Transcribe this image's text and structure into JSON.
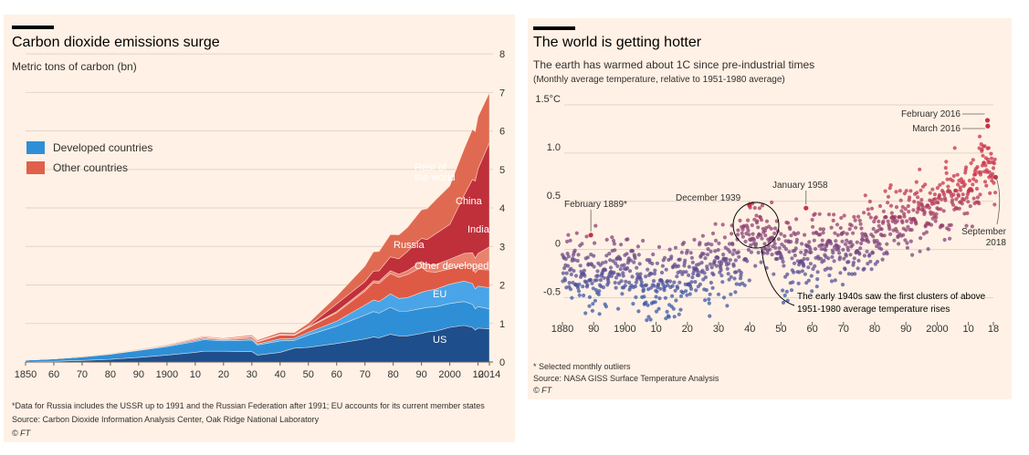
{
  "chart_data": [
    {
      "type": "area",
      "title": "Carbon dioxide emissions surge",
      "subtitle": "Metric tons of carbon (bn)",
      "xlim": [
        1850,
        2014
      ],
      "ylim": [
        0,
        8.5
      ],
      "x_ticks": [
        "1850",
        "60",
        "70",
        "80",
        "90",
        "1900",
        "10",
        "20",
        "30",
        "40",
        "50",
        "60",
        "70",
        "80",
        "90",
        "2000",
        "10",
        "2014"
      ],
      "y_ticks": [
        "0",
        "1",
        "2",
        "3",
        "4",
        "5",
        "6",
        "7",
        "8"
      ],
      "grid": true,
      "legend_position": "left",
      "legend": [
        {
          "label": "Developed countries",
          "color": "#2e8fd8"
        },
        {
          "label": "Other countries",
          "color": "#e0604c"
        }
      ],
      "x": [
        1850,
        1860,
        1870,
        1880,
        1890,
        1900,
        1910,
        1913,
        1920,
        1930,
        1932,
        1940,
        1945,
        1950,
        1960,
        1970,
        1973,
        1975,
        1979,
        1982,
        1985,
        1990,
        1992,
        1995,
        2000,
        2005,
        2008,
        2009,
        2010,
        2014
      ],
      "series": [
        {
          "name": "US",
          "group": "developed",
          "color": "#1f4e8c",
          "values": [
            0.01,
            0.02,
            0.04,
            0.07,
            0.12,
            0.18,
            0.25,
            0.28,
            0.28,
            0.27,
            0.18,
            0.25,
            0.36,
            0.38,
            0.48,
            0.6,
            0.65,
            0.63,
            0.72,
            0.68,
            0.68,
            0.74,
            0.78,
            0.8,
            0.9,
            0.95,
            0.9,
            0.83,
            0.88,
            0.86
          ]
        },
        {
          "name": "EU",
          "group": "developed",
          "color": "#2f8fd6",
          "values": [
            0.04,
            0.06,
            0.09,
            0.13,
            0.18,
            0.22,
            0.28,
            0.3,
            0.27,
            0.3,
            0.26,
            0.3,
            0.2,
            0.32,
            0.45,
            0.62,
            0.66,
            0.64,
            0.7,
            0.64,
            0.64,
            0.65,
            0.64,
            0.63,
            0.62,
            0.62,
            0.6,
            0.55,
            0.56,
            0.52
          ]
        },
        {
          "name": "Other developed",
          "group": "developed",
          "color": "#49a5e8",
          "values": [
            0.0,
            0.0,
            0.0,
            0.01,
            0.01,
            0.02,
            0.03,
            0.03,
            0.03,
            0.04,
            0.03,
            0.05,
            0.05,
            0.07,
            0.13,
            0.26,
            0.3,
            0.3,
            0.35,
            0.33,
            0.35,
            0.42,
            0.43,
            0.46,
            0.5,
            0.53,
            0.54,
            0.52,
            0.53,
            0.55
          ]
        },
        {
          "name": "Russia",
          "group": "other",
          "color": "#de5a45",
          "values": [
            0.0,
            0.0,
            0.0,
            0.0,
            0.01,
            0.02,
            0.03,
            0.03,
            0.01,
            0.04,
            0.05,
            0.1,
            0.08,
            0.12,
            0.22,
            0.36,
            0.45,
            0.47,
            0.53,
            0.55,
            0.6,
            0.65,
            0.5,
            0.44,
            0.4,
            0.42,
            0.45,
            0.42,
            0.43,
            0.46
          ]
        },
        {
          "name": "India",
          "group": "other",
          "color": "#e8826e",
          "values": [
            0.0,
            0.0,
            0.0,
            0.0,
            0.0,
            0.0,
            0.01,
            0.01,
            0.01,
            0.01,
            0.01,
            0.01,
            0.01,
            0.02,
            0.03,
            0.05,
            0.05,
            0.06,
            0.07,
            0.08,
            0.1,
            0.15,
            0.17,
            0.2,
            0.25,
            0.3,
            0.35,
            0.38,
            0.42,
            0.6
          ]
        },
        {
          "name": "China",
          "group": "other",
          "color": "#c0303a",
          "values": [
            0.0,
            0.0,
            0.0,
            0.0,
            0.0,
            0.0,
            0.0,
            0.0,
            0.0,
            0.01,
            0.01,
            0.01,
            0.01,
            0.02,
            0.2,
            0.2,
            0.25,
            0.27,
            0.36,
            0.4,
            0.5,
            0.6,
            0.66,
            0.8,
            0.9,
            1.5,
            1.9,
            2.0,
            2.2,
            2.7
          ]
        },
        {
          "name": "Rest of the world",
          "group": "other",
          "color": "#e06a51",
          "values": [
            0.0,
            0.0,
            0.01,
            0.01,
            0.01,
            0.01,
            0.02,
            0.02,
            0.02,
            0.03,
            0.03,
            0.05,
            0.05,
            0.08,
            0.2,
            0.4,
            0.5,
            0.5,
            0.58,
            0.62,
            0.62,
            0.74,
            0.8,
            0.88,
            1.0,
            1.2,
            1.3,
            1.28,
            1.35,
            1.3
          ]
        }
      ],
      "labels": {
        "us": "US",
        "eu": "EU",
        "other_developed": "Other developed",
        "russia": "Russia",
        "india": "India",
        "china": "China",
        "rest_line1": "Rest of",
        "rest_line2": "the world"
      },
      "footnote": "*Data for Russia includes the USSR up to 1991 and the Russian Federation after 1991; EU accounts for its current member states",
      "source": "Source: Carbon Dioxide Information Analysis Center, Oak Ridge National Laboratory",
      "credit": "© FT"
    },
    {
      "type": "scatter",
      "title": "The world is getting hotter",
      "subtitle": "The earth has warmed about 1C since pre-industrial times",
      "subtitle2": "(Monthly average temperature, relative to 1951-1980 average)",
      "xlim": [
        1880,
        2018
      ],
      "ylim": [
        -0.75,
        1.5
      ],
      "x_ticks": [
        "1880",
        "90",
        "1900",
        "10",
        "20",
        "30",
        "40",
        "50",
        "60",
        "70",
        "80",
        "90",
        "2000",
        "10",
        "18"
      ],
      "y_ticks": [
        "-0.5",
        "0",
        "0.5",
        "1.0",
        "1.5°C"
      ],
      "grid": true,
      "color_scale": {
        "cold": "#3a58a8",
        "warm": "#c8324a"
      },
      "trend_anchors": {
        "year": [
          1880,
          1890,
          1900,
          1910,
          1920,
          1930,
          1937,
          1940,
          1944,
          1950,
          1960,
          1970,
          1980,
          1990,
          2000,
          2010,
          2015,
          2018
        ],
        "anomaly": [
          -0.18,
          -0.28,
          -0.2,
          -0.4,
          -0.25,
          -0.15,
          -0.05,
          0.05,
          0.2,
          -0.1,
          0.0,
          -0.02,
          0.15,
          0.35,
          0.45,
          0.65,
          0.85,
          0.85
        ]
      },
      "outliers": [
        {
          "label": "February 1889*",
          "year": 1889.1,
          "value": 0.15
        },
        {
          "label": "December 1939",
          "year": 1939.9,
          "value": 0.46
        },
        {
          "label": "January 1958",
          "year": 1958.0,
          "value": 0.43
        },
        {
          "label": "February 2016",
          "year": 2016.1,
          "value": 1.34
        },
        {
          "label": "March 2016",
          "year": 2016.2,
          "value": 1.28
        },
        {
          "label": "September 2018",
          "year": 2018.7,
          "value": 0.75
        }
      ],
      "september_label": "September",
      "september_year": "2018",
      "annotation_line1": "The early 1940s saw the first clusters of above",
      "annotation_line2": "1951-1980 average temperature rises",
      "footnote": "* Selected monthly outliers",
      "source": "Source: NASA GISS Surface Temperature Analysis",
      "credit": "© FT"
    }
  ]
}
